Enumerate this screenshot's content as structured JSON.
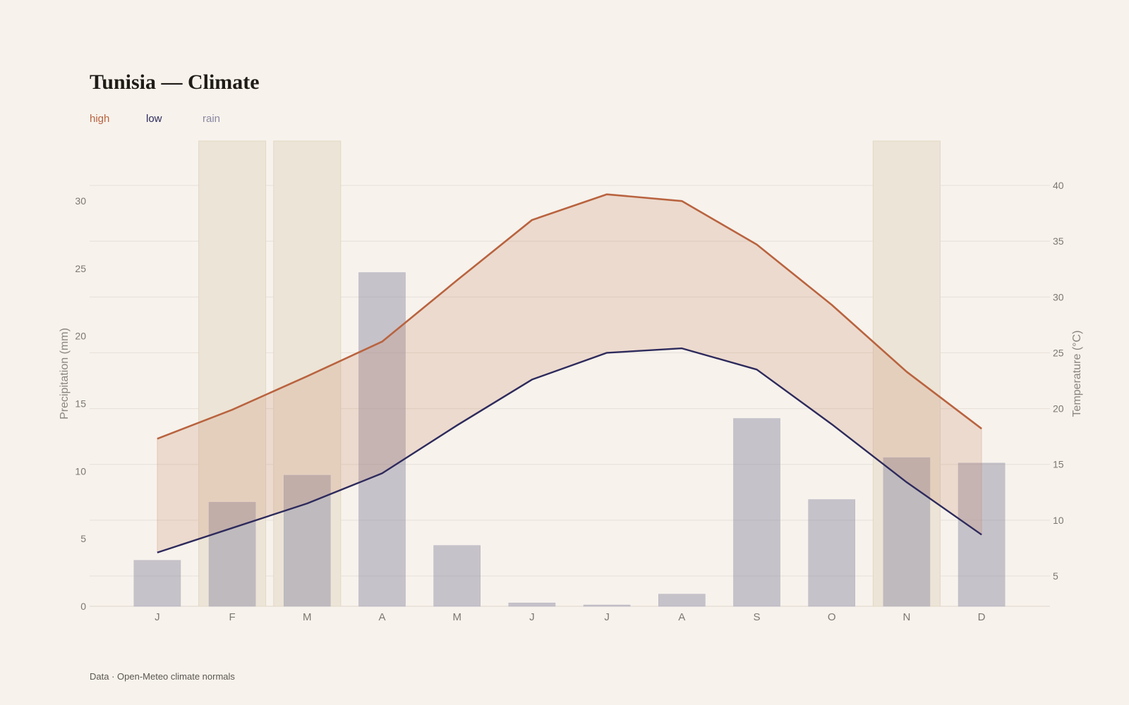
{
  "title": "Tunisia — Climate",
  "footer": "Data · Open-Meteo climate normals",
  "colors": {
    "high": "#b9633f",
    "low": "#2d2a5c",
    "rain": "#8a88a0",
    "band": "#e8d6cc",
    "highlight": "#ece4d6",
    "grid": "#e6e0d8"
  },
  "chart_data": {
    "type": "bar",
    "title": "Tunisia — Climate",
    "categories": [
      "J",
      "F",
      "M",
      "A",
      "M",
      "J",
      "J",
      "A",
      "S",
      "O",
      "N",
      "D"
    ],
    "legend": {
      "placement": "top-left",
      "high": "high",
      "low": "low",
      "rain": "rain"
    },
    "series": [
      {
        "name": "rain",
        "type": "bar",
        "axis": "left",
        "values": [
          3.4,
          7.7,
          9.7,
          24.7,
          4.5,
          0.25,
          0.1,
          0.9,
          13.9,
          7.9,
          11.0,
          10.6
        ]
      },
      {
        "name": "high",
        "type": "line",
        "axis": "right",
        "values": [
          17.3,
          19.9,
          22.9,
          26.0,
          31.5,
          36.9,
          39.2,
          38.6,
          34.7,
          29.3,
          23.3,
          18.2
        ]
      },
      {
        "name": "low",
        "type": "line",
        "axis": "right",
        "values": [
          7.1,
          9.3,
          11.5,
          14.2,
          18.5,
          22.6,
          25.0,
          25.4,
          23.5,
          18.6,
          13.4,
          8.7
        ]
      }
    ],
    "highlighted_months": [
      1,
      2,
      10
    ],
    "ylabel_left": "Precipitation (mm)",
    "ylabel_right": "Temperature (°C)",
    "ylim_left": [
      0,
      33
    ],
    "ylim_right": [
      2.5,
      44
    ],
    "yticks_left": [
      0,
      5,
      10,
      15,
      20,
      25,
      30
    ],
    "yticks_right": [
      5,
      10,
      15,
      20,
      25,
      30,
      35,
      40
    ],
    "grid": true
  }
}
